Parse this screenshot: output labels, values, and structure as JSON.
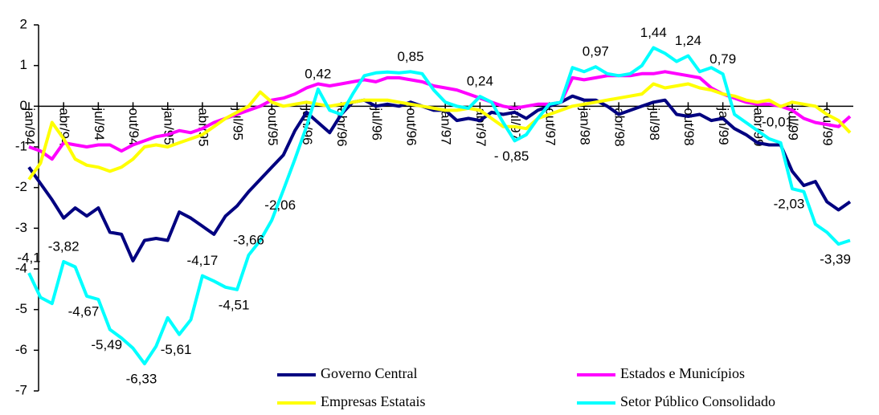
{
  "chart_data": {
    "type": "line",
    "categories": [
      "jan/94",
      null,
      null,
      "abr/94",
      null,
      null,
      "jul/94",
      null,
      null,
      "out/94",
      null,
      null,
      "jan/95",
      null,
      null,
      "abr/95",
      null,
      null,
      "jul/95",
      null,
      null,
      "out/95",
      null,
      null,
      "jan/96",
      null,
      null,
      "abr/96",
      null,
      null,
      "jul/96",
      null,
      null,
      "out/96",
      null,
      null,
      "jan/97",
      null,
      null,
      "abr/97",
      null,
      null,
      "jul/97",
      null,
      null,
      "out/97",
      null,
      null,
      "jan/98",
      null,
      null,
      "abr/98",
      null,
      null,
      "jul/98",
      null,
      null,
      "out/98",
      null,
      null,
      "jan/99",
      null,
      null,
      "abr/99",
      null,
      null,
      "jul/99",
      null,
      null,
      "out/99",
      null,
      null
    ],
    "series": [
      {
        "name": "Governo Central",
        "color": "#000080",
        "values": [
          -1.5,
          -1.9,
          -2.3,
          -2.75,
          -2.5,
          -2.7,
          -2.5,
          -3.1,
          -3.15,
          -3.8,
          -3.3,
          -3.25,
          -3.3,
          -2.6,
          -2.75,
          -2.95,
          -3.15,
          -2.7,
          -2.45,
          -2.1,
          -1.8,
          -1.5,
          -1.2,
          -0.6,
          -0.15,
          -0.4,
          -0.65,
          -0.2,
          0.1,
          0.15,
          0,
          0.05,
          0,
          0.1,
          0,
          -0.1,
          -0.1,
          -0.35,
          -0.3,
          -0.35,
          -0.15,
          -0.2,
          -0.15,
          -0.3,
          -0.1,
          0,
          0.1,
          0.25,
          0.15,
          0.15,
          0,
          -0.2,
          -0.1,
          0,
          0.1,
          0.15,
          -0.2,
          -0.25,
          -0.2,
          -0.35,
          -0.3,
          -0.55,
          -0.7,
          -0.9,
          -0.95,
          -0.95,
          -1.6,
          -1.95,
          -1.85,
          -2.35,
          -2.55,
          -2.35
        ]
      },
      {
        "name": "Estados e Municípios",
        "color": "#ff00ff",
        "values": [
          -1,
          -1.1,
          -1.3,
          -0.9,
          -0.95,
          -1.0,
          -0.95,
          -0.95,
          -1.1,
          -0.95,
          -0.85,
          -0.75,
          -0.7,
          -0.6,
          -0.65,
          -0.55,
          -0.4,
          -0.3,
          -0.2,
          -0.1,
          0,
          0.15,
          0.2,
          0.3,
          0.45,
          0.55,
          0.5,
          0.55,
          0.6,
          0.65,
          0.6,
          0.7,
          0.7,
          0.65,
          0.6,
          0.5,
          0.45,
          0.4,
          0.3,
          0.2,
          0.1,
          0,
          -0.05,
          0,
          0.05,
          0.05,
          0.1,
          0.7,
          0.65,
          0.7,
          0.75,
          0.75,
          0.75,
          0.8,
          0.8,
          0.85,
          0.8,
          0.75,
          0.7,
          0.45,
          0.3,
          0.2,
          0.1,
          0.05,
          0.05,
          0,
          -0.1,
          -0.3,
          -0.4,
          -0.45,
          -0.5,
          -0.25
        ]
      },
      {
        "name": "Empresas Estatais",
        "color": "#ffff00",
        "values": [
          -1.8,
          -1.4,
          -0.4,
          -0.8,
          -1.3,
          -1.45,
          -1.5,
          -1.6,
          -1.5,
          -1.3,
          -1.0,
          -0.95,
          -1.0,
          -0.9,
          -0.8,
          -0.7,
          -0.5,
          -0.3,
          -0.15,
          0,
          0.35,
          0.1,
          0,
          0.05,
          0.1,
          0.05,
          0,
          0.05,
          0.1,
          0.15,
          0.15,
          0.15,
          0.1,
          0.05,
          0,
          -0.05,
          -0.1,
          -0.1,
          -0.05,
          -0.1,
          -0.3,
          -0.5,
          -0.5,
          -0.55,
          -0.3,
          -0.2,
          -0.1,
          0,
          0.05,
          0.1,
          0.15,
          0.2,
          0.25,
          0.3,
          0.55,
          0.45,
          0.5,
          0.55,
          0.45,
          0.4,
          0.3,
          0.25,
          0.15,
          0.1,
          0.15,
          -0.01,
          0.1,
          0.05,
          0,
          -0.2,
          -0.35,
          -0.65
        ],
        "value_labels": [
          null,
          null,
          null,
          null,
          null,
          null,
          null,
          null,
          null,
          null,
          null,
          null,
          null,
          null,
          null,
          null,
          null,
          null,
          null,
          null,
          null,
          null,
          null,
          null,
          null,
          null,
          null,
          null,
          null,
          null,
          null,
          null,
          null,
          null,
          null,
          null,
          null,
          null,
          null,
          null,
          null,
          null,
          null,
          null,
          null,
          null,
          null,
          null,
          null,
          null,
          null,
          null,
          null,
          null,
          null,
          null,
          null,
          null,
          null,
          null,
          null,
          null,
          null,
          null,
          null,
          "-0,01",
          null,
          null,
          null,
          null,
          null,
          null
        ]
      },
      {
        "name": "Setor Público Consolidado",
        "color": "#00ffff",
        "values": [
          -4.1,
          -4.7,
          -4.85,
          -3.82,
          -3.95,
          -4.67,
          -4.75,
          -5.49,
          -5.7,
          -5.95,
          -6.33,
          -5.9,
          -5.2,
          -5.61,
          -5.25,
          -4.17,
          -4.3,
          -4.45,
          -4.51,
          -3.66,
          -3.3,
          -2.8,
          -2.06,
          -1.3,
          -0.5,
          0.42,
          -0.1,
          -0.2,
          0.3,
          0.75,
          0.82,
          0.84,
          0.82,
          0.85,
          0.8,
          0.4,
          0.1,
          0,
          -0.05,
          0.24,
          0.1,
          -0.4,
          -0.85,
          -0.7,
          -0.3,
          0.05,
          0.1,
          0.95,
          0.85,
          0.97,
          0.8,
          0.75,
          0.8,
          1.0,
          1.44,
          1.3,
          1.1,
          1.24,
          0.85,
          0.95,
          0.79,
          -0.2,
          -0.4,
          -0.6,
          -0.8,
          -0.9,
          -2.03,
          -2.1,
          -2.9,
          -3.1,
          -3.39,
          -3.3
        ],
        "value_labels": [
          "-4,1",
          null,
          null,
          "-3,82",
          null,
          "-4,67",
          null,
          "-5,49",
          null,
          null,
          "-6,33",
          null,
          null,
          "-5,61",
          null,
          "-4,17",
          null,
          null,
          "-4,51",
          "-3,66",
          null,
          null,
          "-2,06",
          null,
          null,
          "0,42",
          null,
          null,
          null,
          null,
          null,
          null,
          null,
          "0,85",
          null,
          null,
          null,
          null,
          null,
          "0,24",
          null,
          null,
          "- 0,85",
          null,
          null,
          null,
          null,
          null,
          null,
          "0,97",
          null,
          null,
          null,
          null,
          "1,44",
          null,
          null,
          "1,24",
          null,
          null,
          "0,79",
          null,
          null,
          null,
          null,
          null,
          "-2,03",
          null,
          null,
          null,
          "-3,39",
          null
        ]
      }
    ],
    "ylim": [
      -7,
      2
    ],
    "yticks": [
      2,
      1,
      0,
      -1,
      -2,
      -3,
      -4,
      -5,
      -6,
      -7
    ]
  }
}
